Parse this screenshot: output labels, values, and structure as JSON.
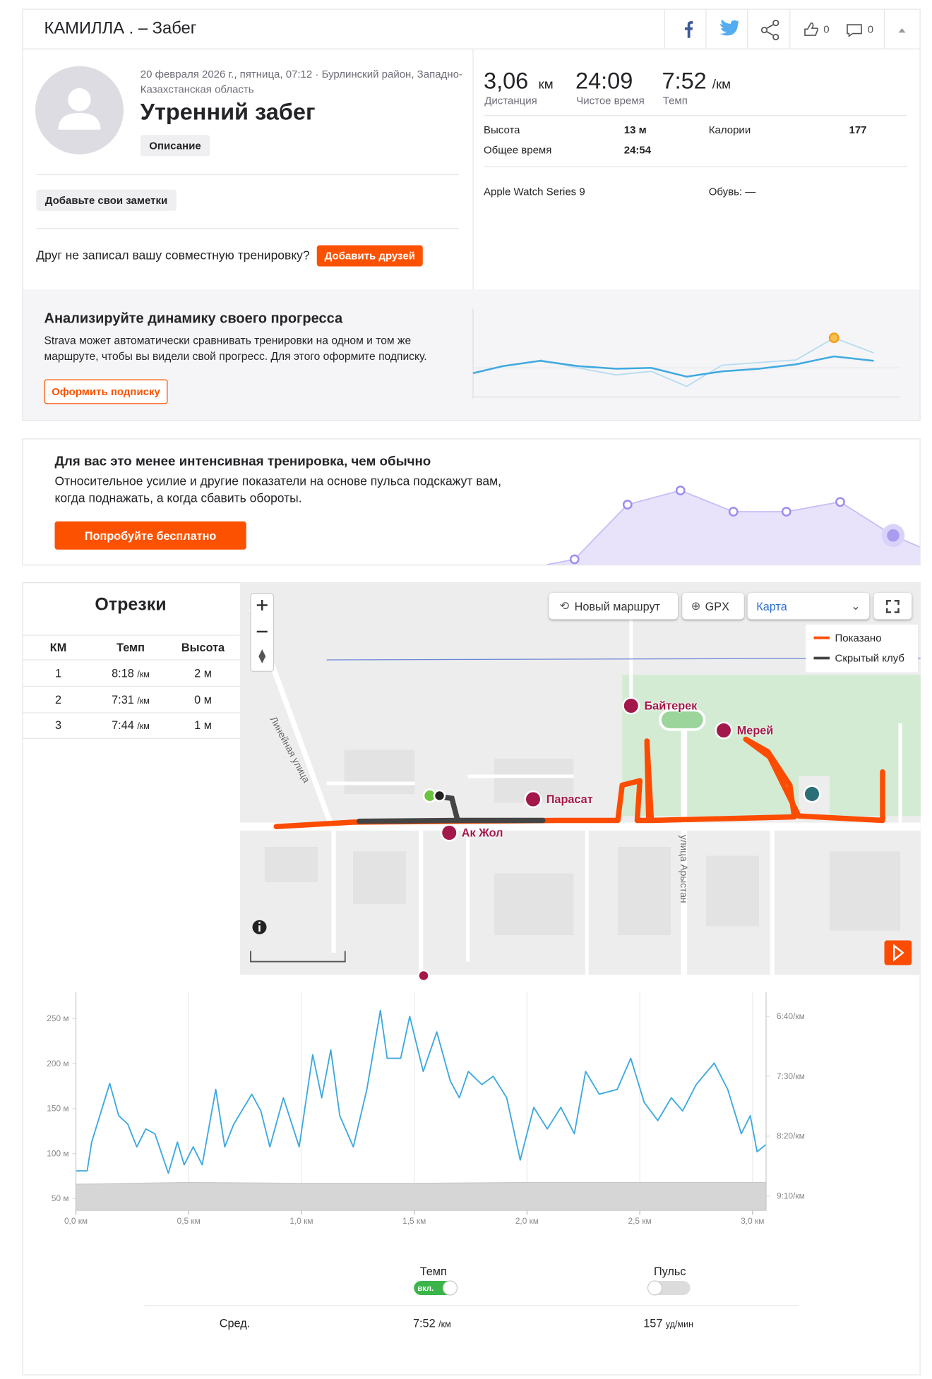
{
  "header": {
    "title": "КАМИЛЛА . – Забег",
    "likes": "0",
    "comments": "0"
  },
  "activity": {
    "meta_line1": "20 февраля 2026 г., пятница, 07:12 · Бурлинский район, Западно-",
    "meta_line2": "Казахстанская область",
    "title": "Утренний забег",
    "description_button": "Описание",
    "notes_button": "Добавьте свои заметки",
    "friend_prompt": "Друг не записал вашу совместную тренировку?",
    "add_friends_button": "Добавить друзей"
  },
  "stats": {
    "distance": {
      "value": "3,06",
      "unit": "км",
      "label": "Дистанция"
    },
    "moving_time": {
      "value": "24:09",
      "label": "Чистое время"
    },
    "pace": {
      "value": "7:52",
      "unit": "/км",
      "label": "Темп"
    },
    "elevation": {
      "label": "Высота",
      "value": "13 м"
    },
    "calories": {
      "label": "Калории",
      "value": "177"
    },
    "elapsed_time": {
      "label": "Общее время",
      "value": "24:54"
    },
    "device": "Apple Watch Series 9",
    "shoes": "Обувь: —"
  },
  "promo_progress": {
    "title": "Анализируйте динамику своего прогресса",
    "text_line1": "Strava может автоматически сравнивать тренировки на одном и том же",
    "text_line2": "маршруте, чтобы вы видели свой прогресс. Для этого оформите подписку.",
    "button": "Оформить подписку"
  },
  "promo_effort": {
    "title": "Для вас это менее интенсивная тренировка, чем обычно",
    "text_line1": "Относительное усилие и другие показатели на основе пульса подскажут вам,",
    "text_line2": "когда поднажать, а когда сбавить обороты.",
    "button": "Попробуйте бесплатно"
  },
  "splits": {
    "title": "Отрезки",
    "headers": [
      "КМ",
      "Темп",
      "Высота"
    ],
    "rows": [
      {
        "km": "1",
        "pace": "8:18",
        "pace_unit": "/км",
        "elevation": "2 м"
      },
      {
        "km": "2",
        "pace": "7:31",
        "pace_unit": "/км",
        "elevation": "0 м"
      },
      {
        "km": "3",
        "pace": "7:44",
        "pace_unit": "/км",
        "elevation": "1 м"
      }
    ]
  },
  "map": {
    "new_route_button": "Новый маршрут",
    "gpx_button": "GPX",
    "map_type": "Карта",
    "legend": [
      "Показано",
      "Скрытый клуб"
    ],
    "places": [
      "Байтерек",
      "Мерей",
      "Парасат",
      "Ак Жол"
    ],
    "streets": [
      "Линейная улица",
      "улица Арыстан"
    ]
  },
  "chart_data": {
    "type": "line",
    "xlim": [
      0,
      3.06
    ],
    "xticks": [
      {
        "value": 0,
        "label": "0,0 км"
      },
      {
        "value": 0.5,
        "label": "0,5 км"
      },
      {
        "value": 1,
        "label": "1,0 км"
      },
      {
        "value": 1.5,
        "label": "1,5 км"
      },
      {
        "value": 2,
        "label": "2,0 км"
      },
      {
        "value": 2.5,
        "label": "2,5 км"
      },
      {
        "value": 3,
        "label": "3,0 км"
      }
    ],
    "ylim": [
      37,
      279
    ],
    "yticks": [
      {
        "value": 50,
        "label": "50 м"
      },
      {
        "value": 100,
        "label": "100 м"
      },
      {
        "value": 150,
        "label": "150 м"
      },
      {
        "value": 200,
        "label": "200 м"
      },
      {
        "value": 250,
        "label": "250 м"
      }
    ],
    "y2lim": [
      562,
      380
    ],
    "y2ticks": [
      {
        "value": 400,
        "label": "6:40/км"
      },
      {
        "value": 450,
        "label": "7:30/км"
      },
      {
        "value": 500,
        "label": "8:20/км"
      },
      {
        "value": 550,
        "label": "9:10/км"
      }
    ],
    "grid": "x",
    "series": [
      {
        "color": "#d6d6d6",
        "fill": "area",
        "x": [
          0,
          0.5,
          1,
          1.5,
          2,
          2.5,
          3.06
        ],
        "values": [
          66,
          68,
          67,
          67,
          68,
          68,
          68
        ]
      },
      {
        "name": "Темп",
        "color": "#3fa9e0",
        "axis": "y2",
        "x": [
          0,
          0.05,
          0.07,
          0.15,
          0.19,
          0.23,
          0.27,
          0.31,
          0.35,
          0.41,
          0.45,
          0.48,
          0.52,
          0.56,
          0.62,
          0.66,
          0.7,
          0.78,
          0.82,
          0.86,
          0.92,
          0.99,
          1.05,
          1.09,
          1.13,
          1.17,
          1.23,
          1.29,
          1.35,
          1.38,
          1.44,
          1.48,
          1.54,
          1.6,
          1.66,
          1.7,
          1.74,
          1.8,
          1.85,
          1.91,
          1.97,
          2.03,
          2.09,
          2.15,
          2.21,
          2.26,
          2.32,
          2.4,
          2.46,
          2.52,
          2.58,
          2.64,
          2.69,
          2.75,
          2.83,
          2.89,
          2.95,
          2.99,
          3.02,
          3.06
        ],
        "values": [
          529,
          529,
          505,
          456,
          483,
          490,
          509,
          494,
          498,
          531,
          505,
          524,
          509,
          524,
          461,
          509,
          490,
          465,
          479,
          509,
          468,
          509,
          432,
          468,
          428,
          483,
          509,
          461,
          395,
          435,
          435,
          400,
          446,
          413,
          454,
          468,
          446,
          457,
          450,
          468,
          520,
          476,
          494,
          476,
          498,
          446,
          465,
          461,
          435,
          472,
          487,
          468,
          479,
          457,
          439,
          461,
          498,
          483,
          513,
          507
        ]
      }
    ]
  },
  "chart_controls": {
    "pace_toggle": "Темп",
    "pace_toggle_state": "вкл.",
    "hr_toggle": "Пульс",
    "avg_label": "Сред.",
    "avg_pace": "7:52",
    "avg_pace_unit": "/км",
    "avg_hr": "157",
    "avg_hr_unit": "уд/мин"
  }
}
